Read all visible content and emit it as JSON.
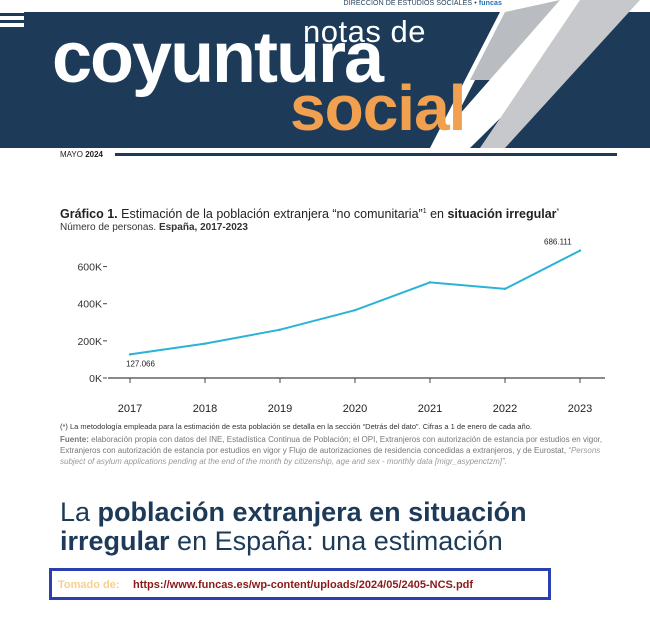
{
  "header": {
    "department": "DIRECCIÓN DE ESTUDIOS SOCIALES •",
    "brand": "funcas",
    "notas": "notas de",
    "coyuntura": "coyuntura",
    "social": "social",
    "date_month": "MAYO",
    "date_year": "2024"
  },
  "chart_header": {
    "label": "Gráfico 1.",
    "title_a": "Estimación de la población extranjera “no comunitaria”",
    "title_sup": "1",
    "title_b": " en ",
    "title_bold": "situación irregular",
    "title_star": "*",
    "subtitle_a": "Número de personas. ",
    "subtitle_bold": "España, 2017-2023"
  },
  "chart_data": {
    "type": "line",
    "x": [
      "2017",
      "2018",
      "2019",
      "2020",
      "2021",
      "2022",
      "2023"
    ],
    "series": [
      {
        "values": [
          127066,
          185000,
          260000,
          365000,
          515000,
          480000,
          686111
        ]
      }
    ],
    "data_labels": {
      "first": "127.066",
      "last": "686.111"
    },
    "yticks": [
      0,
      200000,
      400000,
      600000
    ],
    "ytick_labels": [
      "0K",
      "200K",
      "400K",
      "600K"
    ],
    "ylim": [
      0,
      700000
    ],
    "xlabel": "",
    "ylabel": "",
    "line_color": "#2ab3d6",
    "grid": false
  },
  "notes": {
    "methodology": "(*) La metodología empleada para la estimación de esta población se detalla en la sección “Detrás del dato”. Cifras a 1 de enero de cada año.",
    "source_label": "Fuente:",
    "source_text": " elaboración propia con datos del INE, Estadística Continua de Población; el OPI, Extranjeros con autorización de estancia por estudios en vigor, Extranjeros con autorización de estancia por estudios en vigor y Flujo de autorizaciones de residencia concedidas a extranjeros, y de Eurostat, ",
    "source_italic": "“Persons subject of asylum applications pending at the end of the month by citizenship, age and sex - monthly data [migr_asypenctzm]”."
  },
  "headline": {
    "part1": "La ",
    "bold1": "población extranjera en situación irregular",
    "part2": " en España: una estimación"
  },
  "link": {
    "label": "Tomado de:",
    "url": "https://www.funcas.es/wp-content/uploads/2024/05/2405-NCS.pdf"
  },
  "colors": {
    "navy": "#1d3b58",
    "orange": "#f0a04e",
    "accent_line": "#2ab3d6",
    "link_border": "#2b3fb0"
  }
}
